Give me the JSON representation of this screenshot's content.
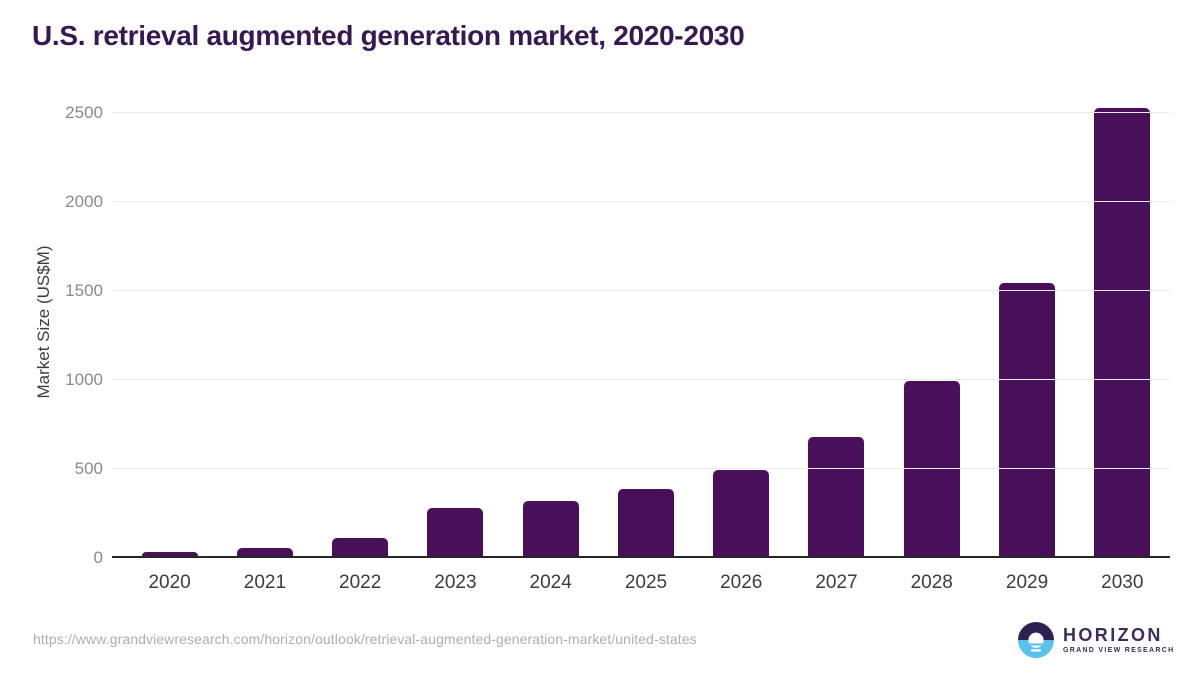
{
  "title": "U.S. retrieval augmented generation market, 2020-2030",
  "y_axis": {
    "title": "Market Size (US$M)"
  },
  "footer": {
    "source_url": "https://www.grandviewresearch.com/horizon/outlook/retrieval-augmented-generation-market/united-states",
    "brand": "HORIZON",
    "brand_sub": "GRAND VIEW RESEARCH"
  },
  "colors": {
    "bar": "#481059",
    "title": "#371851",
    "axis_text": "#3d3d3d",
    "tick_text": "#8a8a8a",
    "gridline": "#eaeaea",
    "baseline": "#262626",
    "source_url_text": "#aeaeae",
    "logo_purple": "#2e2150",
    "logo_blue": "#58c1ee",
    "logo_text": "#3f2b5c"
  },
  "chart_data": {
    "type": "bar",
    "title": "U.S. retrieval augmented generation market, 2020-2030",
    "categories": [
      "2020",
      "2021",
      "2022",
      "2023",
      "2024",
      "2025",
      "2026",
      "2027",
      "2028",
      "2029",
      "2030"
    ],
    "values": [
      25,
      45,
      100,
      270,
      310,
      375,
      485,
      670,
      985,
      1535,
      2515
    ],
    "xlabel": "",
    "ylabel": "Market Size (US$M)",
    "ylim": [
      0,
      2500
    ],
    "yticks": [
      0,
      500,
      1000,
      1500,
      2000,
      2500
    ],
    "grid": true,
    "legend": false,
    "bar_color": "#481059"
  }
}
